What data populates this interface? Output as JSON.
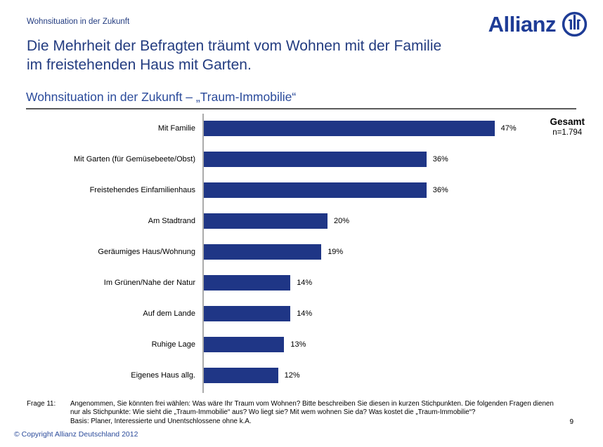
{
  "slide": {
    "header_label": "Wohnsituation in der Zukunft",
    "title_line1": "Die Mehrheit der Befragten träumt vom Wohnen mit der Familie",
    "title_line2": "im freistehenden Haus mit Garten.",
    "section_heading": "Wohnsituation in der Zukunft – „Traum-Immobilie“",
    "page_number": "9",
    "copyright": "© Copyright Allianz Deutschland 2012"
  },
  "logo": {
    "wordmark": "Allianz",
    "emblem_icon": "allianz-emblem-icon"
  },
  "chart_data": {
    "type": "bar",
    "orientation": "horizontal",
    "title": "Wohnsituation in der Zukunft – „Traum-Immobilie“",
    "categories": [
      "Mit Familie",
      "Mit Garten (für Gemüsebeete/Obst)",
      "Freistehendes Einfamilienhaus",
      "Am Stadtrand",
      "Geräumiges Haus/Wohnung",
      "Im Grünen/Nahe der Natur",
      "Auf dem Lande",
      "Ruhige Lage",
      "Eigenes Haus allg."
    ],
    "values": [
      47,
      36,
      36,
      20,
      19,
      14,
      14,
      13,
      12
    ],
    "value_labels": [
      "47%",
      "36%",
      "36%",
      "20%",
      "19%",
      "14%",
      "14%",
      "13%",
      "12%"
    ],
    "xlim": [
      0,
      50
    ],
    "xlabel": "",
    "ylabel": "",
    "grid": false,
    "legend_position": "none",
    "group_label": "Gesamt",
    "sample_size": "n=1.794",
    "bar_color": "#1F3686"
  },
  "footnote": {
    "label": "Frage 11:",
    "lines": [
      "Angenommen, Sie könnten frei wählen: Was wäre Ihr Traum vom Wohnen? Bitte beschreiben Sie diesen in kurzen Stichpunkten. Die folgenden Fragen dienen",
      "nur als Stichpunkte: Wie sieht die „Traum-Immobilie“ aus? Wo liegt sie? Mit wem wohnen Sie da? Was kostet die „Traum-Immobilie“?",
      "Basis: Planer, Interessierte und Unentschlossene ohne k.A."
    ]
  },
  "colors": {
    "text_blue": "#233C80",
    "heading_blue": "#2B4B9B",
    "brand_blue": "#1E3C96",
    "bar_navy": "#1F3686",
    "axis_gray": "#ABABAB",
    "rule_gray": "#5A5A5A"
  }
}
